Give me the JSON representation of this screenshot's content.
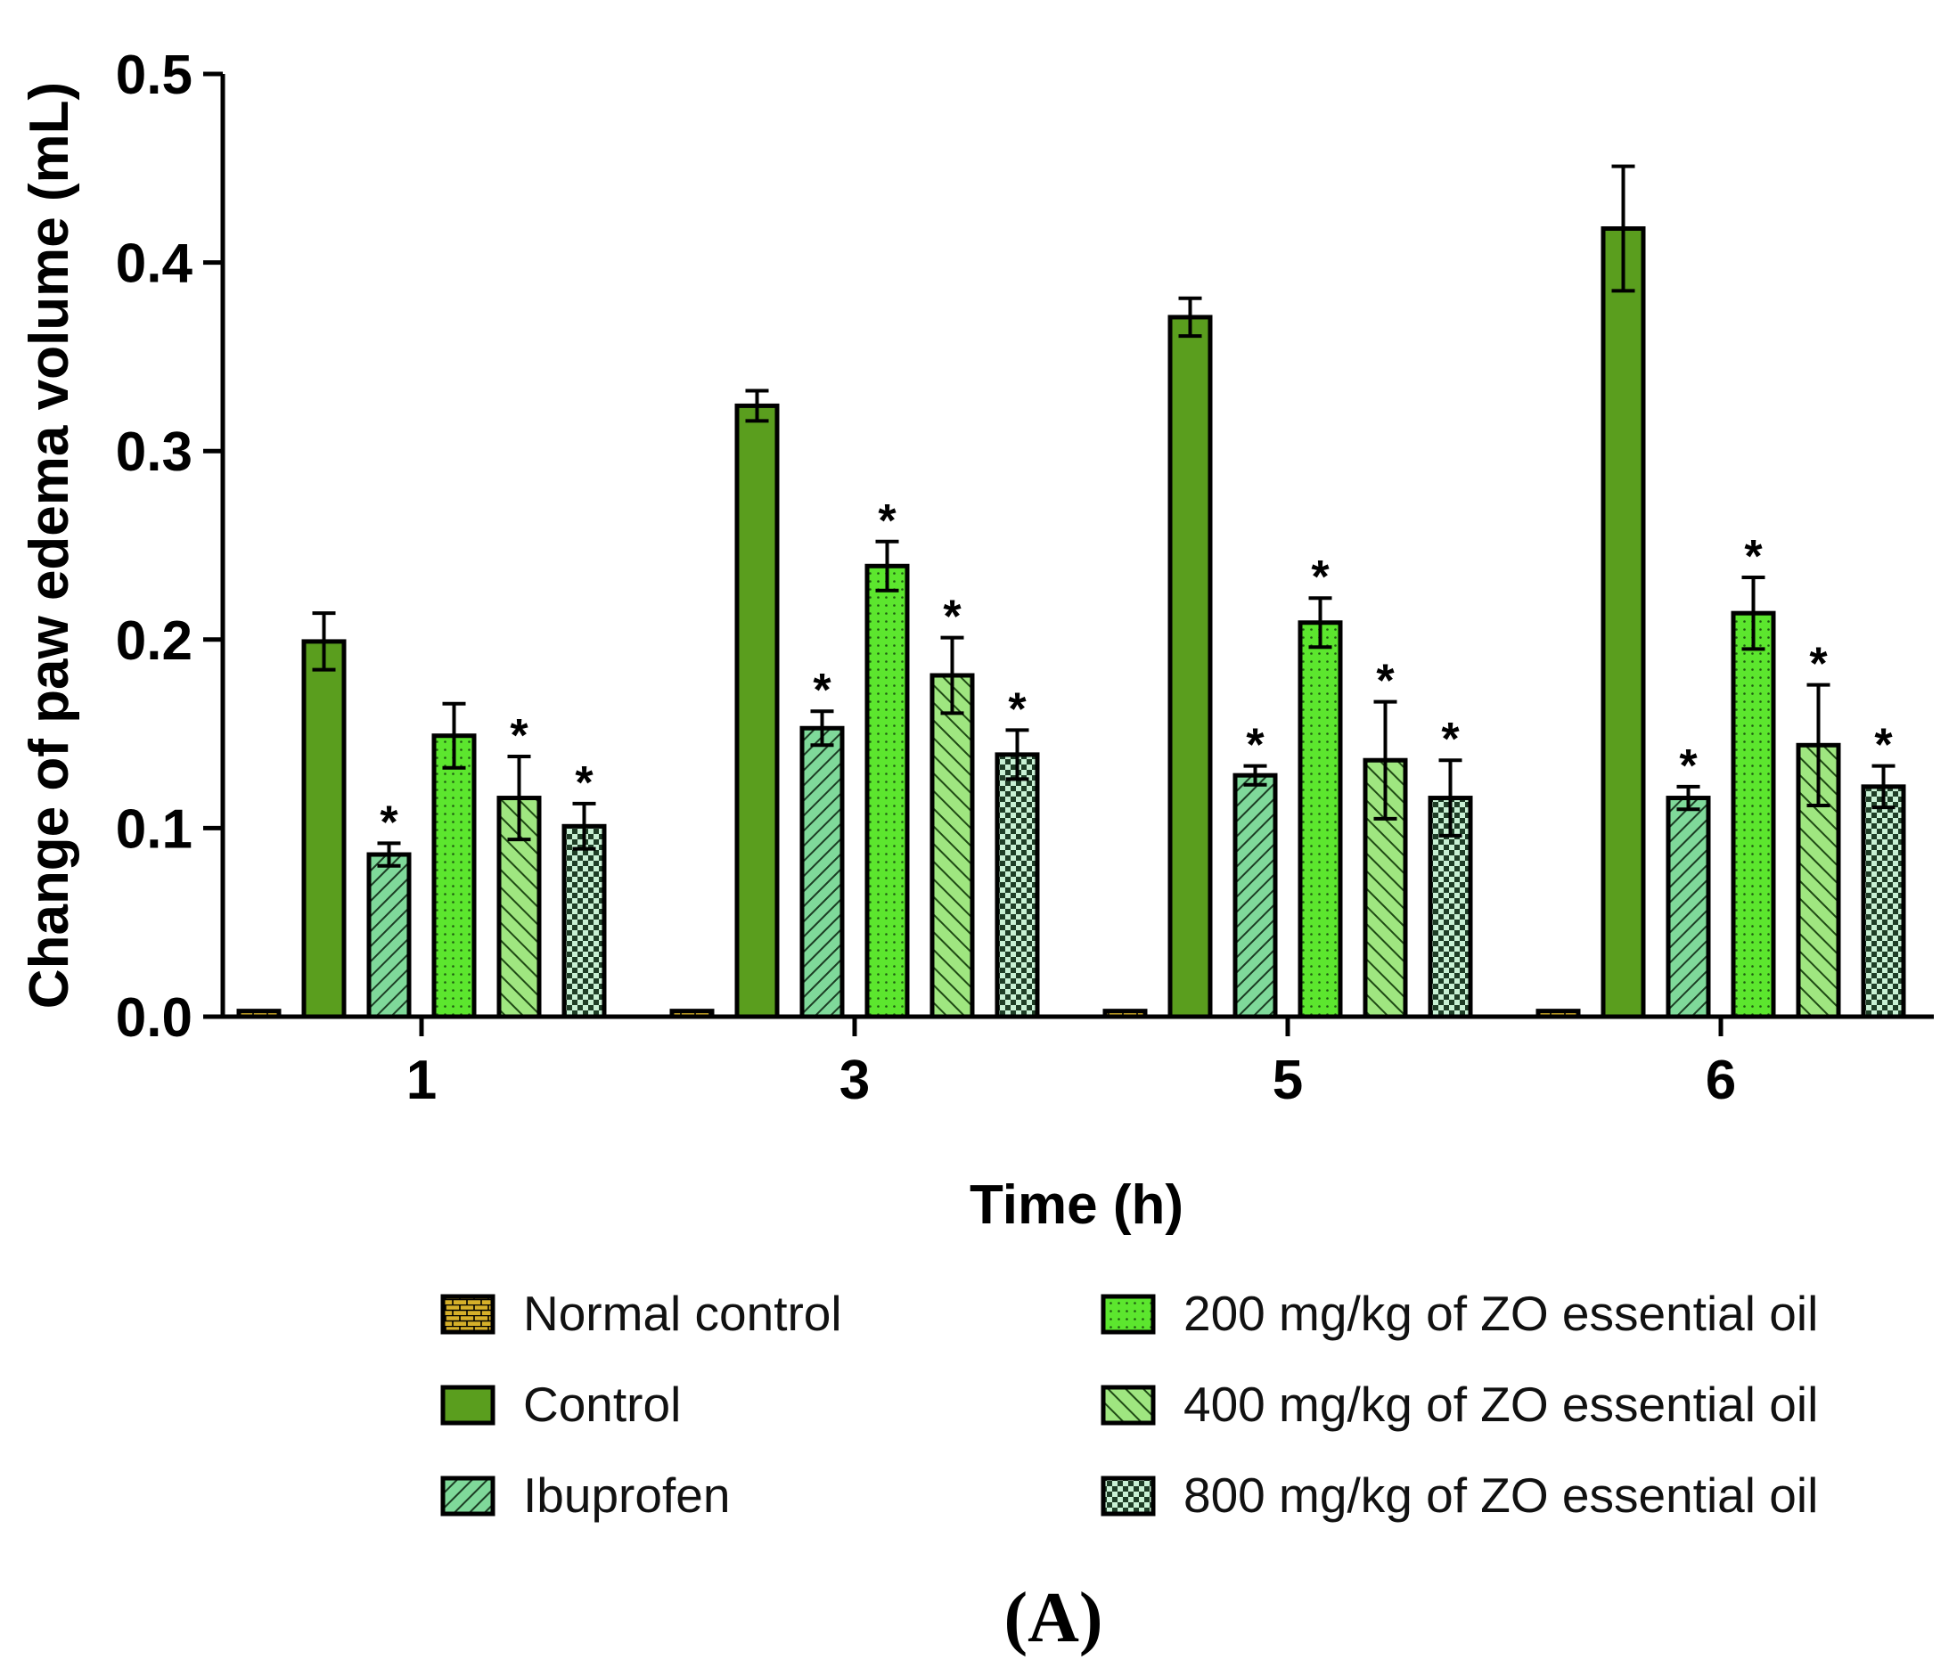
{
  "chart_data": {
    "type": "bar",
    "title": "",
    "panel_label": "(A)",
    "xlabel": "Time (h)",
    "ylabel": "Change of paw edema volume (mL)",
    "ylim": [
      0,
      0.5
    ],
    "yticks": [
      "0.0",
      "0.1",
      "0.2",
      "0.3",
      "0.4",
      "0.5"
    ],
    "categories": [
      "1",
      "3",
      "5",
      "6"
    ],
    "legend_position": "bottom",
    "significance_marker": "*",
    "series": [
      {
        "name": "Normal control",
        "pattern": "brick",
        "color": "#c9a21a",
        "values": [
          0.003,
          0.003,
          0.003,
          0.003
        ],
        "errors": [
          0,
          0,
          0,
          0
        ],
        "significant": [
          false,
          false,
          false,
          false
        ]
      },
      {
        "name": "Control",
        "pattern": "solid",
        "color": "#5a9e1e",
        "values": [
          0.199,
          0.324,
          0.371,
          0.418
        ],
        "errors": [
          0.015,
          0.008,
          0.01,
          0.033
        ],
        "significant": [
          false,
          false,
          false,
          false
        ]
      },
      {
        "name": "Ibuprofen",
        "pattern": "back-diagonal",
        "color": "#7fd99a",
        "values": [
          0.086,
          0.153,
          0.128,
          0.116
        ],
        "errors": [
          0.006,
          0.009,
          0.005,
          0.006
        ],
        "significant": [
          true,
          true,
          true,
          true
        ]
      },
      {
        "name": "200 mg/kg of ZO essential oil",
        "pattern": "dots",
        "color": "#5ce62e",
        "values": [
          0.149,
          0.239,
          0.209,
          0.214
        ],
        "errors": [
          0.017,
          0.013,
          0.013,
          0.019
        ],
        "significant": [
          false,
          true,
          true,
          true
        ]
      },
      {
        "name": "400 mg/kg of ZO essential oil",
        "pattern": "forward-diagonal",
        "color": "#9fe680",
        "values": [
          0.116,
          0.181,
          0.136,
          0.144
        ],
        "errors": [
          0.022,
          0.02,
          0.031,
          0.032
        ],
        "significant": [
          true,
          true,
          true,
          true
        ]
      },
      {
        "name": "800 mg/kg of ZO essential oil",
        "pattern": "checker",
        "color": "#c8f0d4",
        "values": [
          0.101,
          0.139,
          0.116,
          0.122
        ],
        "errors": [
          0.012,
          0.013,
          0.02,
          0.011
        ],
        "significant": [
          true,
          true,
          true,
          true
        ]
      }
    ]
  }
}
